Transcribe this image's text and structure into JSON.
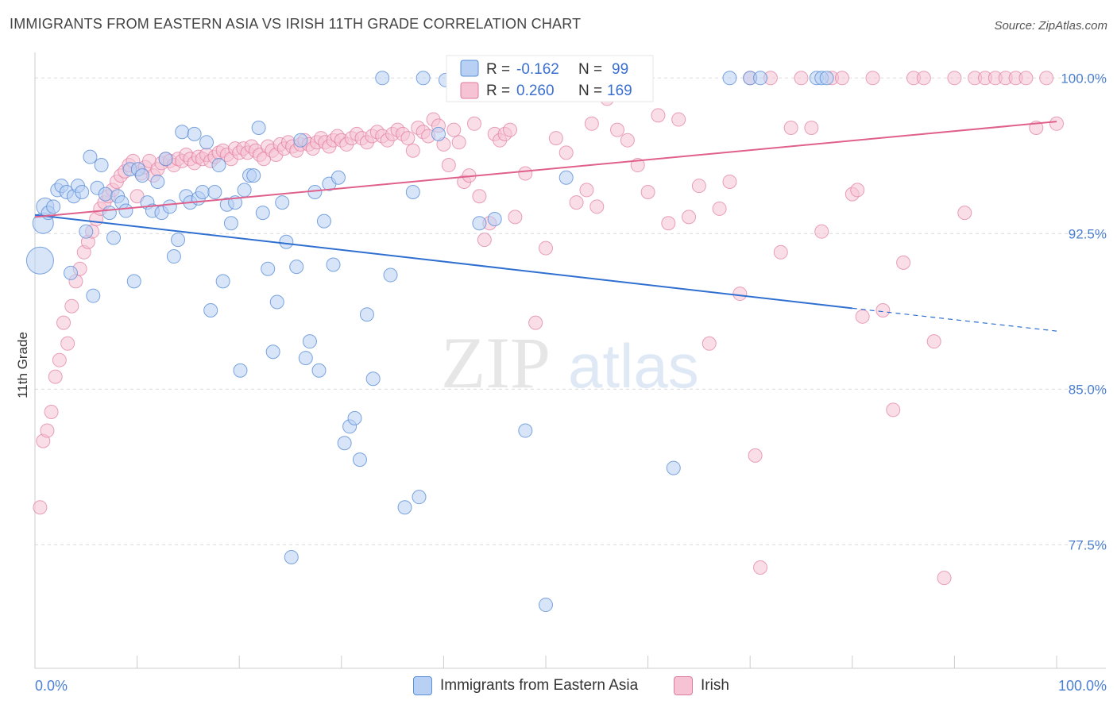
{
  "header": {
    "title": "IMMIGRANTS FROM EASTERN ASIA VS IRISH 11TH GRADE CORRELATION CHART",
    "source": "Source: ZipAtlas.com"
  },
  "watermark": {
    "zip": "ZIP",
    "atlas": "atlas"
  },
  "colors": {
    "blue": "#5b8fd6",
    "blue_fill": "#b8d0f4",
    "pink": "#e07aa0",
    "pink_fill": "#f6c3d4",
    "blue_line": "#2f6fd0",
    "pink_line": "#e0608c",
    "tick_text": "#4a7fd1"
  },
  "legend": {
    "r_label": "R =",
    "n_label": "N =",
    "blue": {
      "r": "-0.162",
      "n": "99"
    },
    "pink": {
      "r": "0.260",
      "n": "169"
    }
  },
  "bottom_legend": {
    "blue": "Immigrants from Eastern Asia",
    "pink": "Irish"
  },
  "chart_data": {
    "type": "scatter",
    "title": "IMMIGRANTS FROM EASTERN ASIA VS IRISH 11TH GRADE CORRELATION CHART",
    "xlabel": "",
    "ylabel": "11th Grade",
    "xlim": [
      0,
      100
    ],
    "ylim": [
      72.0,
      100.7
    ],
    "x_tick_labels": [
      "0.0%",
      "100.0%"
    ],
    "y_ticks": [
      100.0,
      92.5,
      85.0,
      77.5
    ],
    "y_tick_labels": [
      "100.0%",
      "92.5%",
      "85.0%",
      "77.5%"
    ],
    "grid": "horizontal dashed",
    "legend_position": "top-center",
    "series": [
      {
        "name": "Immigrants from Eastern Asia",
        "color": "#5b8fd6",
        "r": -0.162,
        "n": 99,
        "trend": {
          "x0": 0,
          "y0": 93.4,
          "x1": 80,
          "y1": 88.9,
          "dashed_to_x": 100,
          "dashed_to_y": 87.8
        },
        "points": [
          [
            0.5,
            91.2
          ],
          [
            0.8,
            93.0
          ],
          [
            1.0,
            93.8
          ],
          [
            1.3,
            93.5
          ],
          [
            1.8,
            93.8
          ],
          [
            2.2,
            94.6
          ],
          [
            2.6,
            94.8
          ],
          [
            3.1,
            94.5
          ],
          [
            3.5,
            90.6
          ],
          [
            3.8,
            94.3
          ],
          [
            4.2,
            94.8
          ],
          [
            4.6,
            94.5
          ],
          [
            5.0,
            92.6
          ],
          [
            5.4,
            96.2
          ],
          [
            5.7,
            89.5
          ],
          [
            6.1,
            94.7
          ],
          [
            6.5,
            95.8
          ],
          [
            6.9,
            94.4
          ],
          [
            7.3,
            93.5
          ],
          [
            7.7,
            92.3
          ],
          [
            8.1,
            94.3
          ],
          [
            8.5,
            94.0
          ],
          [
            8.9,
            93.6
          ],
          [
            9.3,
            95.6
          ],
          [
            9.7,
            90.2
          ],
          [
            10.1,
            95.6
          ],
          [
            10.5,
            95.3
          ],
          [
            11.0,
            94.0
          ],
          [
            11.5,
            93.6
          ],
          [
            12.0,
            95.0
          ],
          [
            12.4,
            93.5
          ],
          [
            12.8,
            96.1
          ],
          [
            13.2,
            93.8
          ],
          [
            13.6,
            91.4
          ],
          [
            14.0,
            92.2
          ],
          [
            14.4,
            97.4
          ],
          [
            14.8,
            94.3
          ],
          [
            15.2,
            94.0
          ],
          [
            15.6,
            97.3
          ],
          [
            16.0,
            94.2
          ],
          [
            16.4,
            94.5
          ],
          [
            16.8,
            96.9
          ],
          [
            17.2,
            88.8
          ],
          [
            17.6,
            94.5
          ],
          [
            18.0,
            95.8
          ],
          [
            18.4,
            90.2
          ],
          [
            18.8,
            93.9
          ],
          [
            19.2,
            93.0
          ],
          [
            19.6,
            94.0
          ],
          [
            20.1,
            85.9
          ],
          [
            20.5,
            94.6
          ],
          [
            21.0,
            95.3
          ],
          [
            21.4,
            95.3
          ],
          [
            21.9,
            97.6
          ],
          [
            22.3,
            93.5
          ],
          [
            22.8,
            90.8
          ],
          [
            23.3,
            86.8
          ],
          [
            23.7,
            89.2
          ],
          [
            24.2,
            94.0
          ],
          [
            24.6,
            92.1
          ],
          [
            25.1,
            76.9
          ],
          [
            25.6,
            90.9
          ],
          [
            26.0,
            97.0
          ],
          [
            26.5,
            86.5
          ],
          [
            26.9,
            87.3
          ],
          [
            27.4,
            94.5
          ],
          [
            27.8,
            85.9
          ],
          [
            28.3,
            93.1
          ],
          [
            28.8,
            94.9
          ],
          [
            29.2,
            91.0
          ],
          [
            29.7,
            95.2
          ],
          [
            30.3,
            82.4
          ],
          [
            30.8,
            83.2
          ],
          [
            31.3,
            83.6
          ],
          [
            31.8,
            81.6
          ],
          [
            32.5,
            88.6
          ],
          [
            33.1,
            85.5
          ],
          [
            34.0,
            100.0
          ],
          [
            34.8,
            90.5
          ],
          [
            36.2,
            79.3
          ],
          [
            37.0,
            94.5
          ],
          [
            37.6,
            79.8
          ],
          [
            38.0,
            100.0
          ],
          [
            39.5,
            97.3
          ],
          [
            40.2,
            99.9
          ],
          [
            42.0,
            100.0
          ],
          [
            43.5,
            93.0
          ],
          [
            45.0,
            93.2
          ],
          [
            48.0,
            83.0
          ],
          [
            50.0,
            74.6
          ],
          [
            52.0,
            95.2
          ],
          [
            54.0,
            100.0
          ],
          [
            62.5,
            81.2
          ],
          [
            68.0,
            100.0
          ],
          [
            70.0,
            100.0
          ],
          [
            71.0,
            100.0
          ],
          [
            76.5,
            100.0
          ],
          [
            77.0,
            100.0
          ],
          [
            77.5,
            100.0
          ]
        ]
      },
      {
        "name": "Irish",
        "color": "#e07aa0",
        "r": 0.26,
        "n": 169,
        "trend": {
          "x0": 0,
          "y0": 93.3,
          "x1": 100,
          "y1": 97.9
        },
        "points": [
          [
            0.5,
            79.3
          ],
          [
            0.8,
            82.5
          ],
          [
            1.2,
            83.0
          ],
          [
            1.6,
            83.9
          ],
          [
            2.0,
            85.6
          ],
          [
            2.4,
            86.4
          ],
          [
            2.8,
            88.2
          ],
          [
            3.2,
            87.2
          ],
          [
            3.6,
            89.0
          ],
          [
            4.0,
            90.2
          ],
          [
            4.4,
            90.8
          ],
          [
            4.8,
            91.6
          ],
          [
            5.2,
            92.1
          ],
          [
            5.6,
            92.6
          ],
          [
            6.0,
            93.2
          ],
          [
            6.4,
            93.7
          ],
          [
            6.8,
            94.0
          ],
          [
            7.2,
            94.3
          ],
          [
            7.6,
            94.6
          ],
          [
            8.0,
            95.0
          ],
          [
            8.4,
            95.3
          ],
          [
            8.8,
            95.5
          ],
          [
            9.2,
            95.8
          ],
          [
            9.6,
            96.0
          ],
          [
            10.0,
            94.3
          ],
          [
            10.4,
            95.4
          ],
          [
            10.8,
            95.7
          ],
          [
            11.2,
            96.0
          ],
          [
            11.6,
            95.3
          ],
          [
            12.0,
            95.6
          ],
          [
            12.4,
            95.9
          ],
          [
            12.8,
            96.1
          ],
          [
            13.2,
            96.0
          ],
          [
            13.6,
            95.8
          ],
          [
            14.0,
            96.1
          ],
          [
            14.4,
            96.0
          ],
          [
            14.8,
            96.3
          ],
          [
            15.2,
            96.1
          ],
          [
            15.6,
            95.9
          ],
          [
            16.0,
            96.2
          ],
          [
            16.4,
            96.1
          ],
          [
            16.8,
            96.3
          ],
          [
            17.2,
            96.0
          ],
          [
            17.6,
            96.2
          ],
          [
            18.0,
            96.4
          ],
          [
            18.4,
            96.5
          ],
          [
            18.8,
            96.3
          ],
          [
            19.2,
            96.1
          ],
          [
            19.6,
            96.6
          ],
          [
            20.0,
            96.4
          ],
          [
            20.4,
            96.6
          ],
          [
            20.8,
            96.4
          ],
          [
            21.2,
            96.7
          ],
          [
            21.6,
            96.5
          ],
          [
            22.0,
            96.3
          ],
          [
            22.4,
            96.1
          ],
          [
            22.8,
            96.7
          ],
          [
            23.2,
            96.5
          ],
          [
            23.6,
            96.3
          ],
          [
            24.0,
            96.8
          ],
          [
            24.4,
            96.6
          ],
          [
            24.8,
            96.9
          ],
          [
            25.2,
            96.7
          ],
          [
            25.6,
            96.5
          ],
          [
            26.0,
            96.8
          ],
          [
            26.4,
            97.0
          ],
          [
            26.8,
            96.8
          ],
          [
            27.2,
            96.6
          ],
          [
            27.6,
            96.9
          ],
          [
            28.0,
            97.1
          ],
          [
            28.4,
            96.9
          ],
          [
            28.8,
            96.7
          ],
          [
            29.2,
            97.0
          ],
          [
            29.6,
            97.2
          ],
          [
            30.0,
            97.0
          ],
          [
            30.5,
            96.8
          ],
          [
            31.0,
            97.1
          ],
          [
            31.5,
            97.3
          ],
          [
            32.0,
            97.1
          ],
          [
            32.5,
            96.9
          ],
          [
            33.0,
            97.2
          ],
          [
            33.5,
            97.4
          ],
          [
            34.0,
            97.2
          ],
          [
            34.5,
            97.0
          ],
          [
            35.0,
            97.3
          ],
          [
            35.5,
            97.5
          ],
          [
            36.0,
            97.3
          ],
          [
            36.5,
            97.1
          ],
          [
            37.0,
            96.5
          ],
          [
            37.5,
            97.6
          ],
          [
            38.0,
            97.4
          ],
          [
            38.5,
            97.2
          ],
          [
            39.0,
            98.0
          ],
          [
            39.5,
            97.7
          ],
          [
            40.0,
            96.8
          ],
          [
            40.5,
            95.8
          ],
          [
            41.0,
            97.5
          ],
          [
            41.5,
            96.9
          ],
          [
            42.0,
            95.0
          ],
          [
            42.5,
            95.3
          ],
          [
            43.0,
            97.8
          ],
          [
            43.5,
            94.3
          ],
          [
            44.0,
            92.2
          ],
          [
            44.5,
            93.0
          ],
          [
            45.0,
            97.3
          ],
          [
            45.5,
            97.0
          ],
          [
            46.0,
            97.3
          ],
          [
            46.5,
            97.5
          ],
          [
            47.0,
            93.3
          ],
          [
            48.0,
            95.4
          ],
          [
            49.0,
            88.2
          ],
          [
            50.0,
            91.8
          ],
          [
            51.0,
            97.1
          ],
          [
            52.0,
            96.4
          ],
          [
            53.0,
            94.0
          ],
          [
            54.0,
            94.6
          ],
          [
            54.5,
            97.8
          ],
          [
            55.0,
            93.8
          ],
          [
            56.0,
            99.0
          ],
          [
            57.0,
            97.5
          ],
          [
            58.0,
            97.0
          ],
          [
            59.0,
            95.8
          ],
          [
            60.0,
            94.5
          ],
          [
            61.0,
            98.2
          ],
          [
            62.0,
            93.0
          ],
          [
            63.0,
            98.0
          ],
          [
            64.0,
            93.3
          ],
          [
            65.0,
            94.8
          ],
          [
            66.0,
            87.2
          ],
          [
            67.0,
            93.7
          ],
          [
            68.0,
            95.0
          ],
          [
            69.0,
            89.6
          ],
          [
            70.0,
            100.0
          ],
          [
            70.5,
            81.8
          ],
          [
            71.0,
            76.4
          ],
          [
            72.0,
            100.0
          ],
          [
            73.0,
            91.6
          ],
          [
            74.0,
            97.6
          ],
          [
            75.0,
            100.0
          ],
          [
            76.0,
            97.6
          ],
          [
            77.0,
            92.6
          ],
          [
            78.0,
            100.0
          ],
          [
            79.0,
            100.0
          ],
          [
            80.0,
            94.4
          ],
          [
            80.5,
            94.6
          ],
          [
            81.0,
            88.5
          ],
          [
            82.0,
            100.0
          ],
          [
            83.0,
            88.8
          ],
          [
            84.0,
            84.0
          ],
          [
            85.0,
            91.1
          ],
          [
            86.0,
            100.0
          ],
          [
            87.0,
            100.0
          ],
          [
            88.0,
            87.3
          ],
          [
            89.0,
            75.9
          ],
          [
            90.0,
            100.0
          ],
          [
            91.0,
            93.5
          ],
          [
            92.0,
            100.0
          ],
          [
            93.0,
            100.0
          ],
          [
            94.0,
            100.0
          ],
          [
            95.0,
            100.0
          ],
          [
            96.0,
            100.0
          ],
          [
            97.0,
            100.0
          ],
          [
            98.0,
            97.6
          ],
          [
            99.0,
            100.0
          ],
          [
            100.0,
            97.8
          ]
        ]
      }
    ]
  }
}
